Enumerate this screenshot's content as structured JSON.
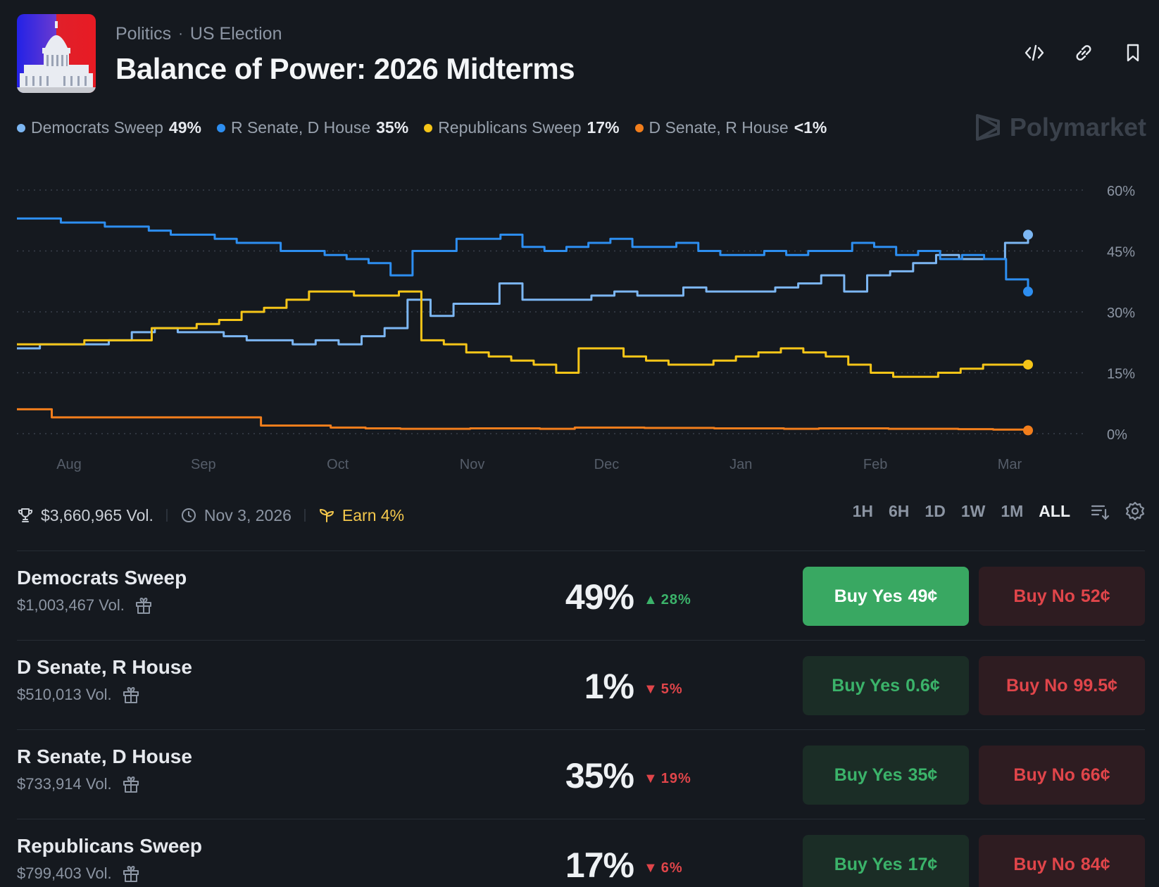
{
  "header": {
    "category": "Politics",
    "subcategory": "US Election",
    "title": "Balance of Power: 2026 Midterms",
    "actions": [
      "code-icon",
      "link-icon",
      "bookmark-icon"
    ]
  },
  "legend": [
    {
      "name": "Democrats Sweep",
      "value": "49%",
      "color": "#7cb6f2"
    },
    {
      "name": "R Senate, D House",
      "value": "35%",
      "color": "#2d8ef0"
    },
    {
      "name": "Republicans Sweep",
      "value": "17%",
      "color": "#f5c518"
    },
    {
      "name": "D Senate, R House",
      "value": "<1%",
      "color": "#f27e1c"
    }
  ],
  "brand": "Polymarket",
  "chart_data": {
    "type": "line",
    "x_tick_labels": [
      "Aug",
      "Sep",
      "Oct",
      "Nov",
      "Dec",
      "Jan",
      "Feb",
      "Mar"
    ],
    "y_tick_labels": [
      "60%",
      "45%",
      "30%",
      "15%",
      "0%"
    ],
    "ylim": [
      0,
      60
    ],
    "grid": true,
    "series": [
      {
        "name": "Democrats Sweep",
        "color": "#7cb6f2",
        "values": [
          21,
          22,
          22,
          22,
          23,
          25,
          26,
          25,
          25,
          24,
          23,
          23,
          22,
          23,
          22,
          24,
          26,
          33,
          29,
          32,
          32,
          37,
          33,
          33,
          33,
          34,
          35,
          34,
          34,
          36,
          35,
          35,
          35,
          36,
          37,
          39,
          35,
          39,
          40,
          42,
          44,
          43,
          43,
          47,
          49
        ]
      },
      {
        "name": "R Senate, D House",
        "color": "#2d8ef0",
        "values": [
          53,
          53,
          52,
          52,
          51,
          51,
          50,
          49,
          49,
          48,
          47,
          47,
          45,
          45,
          44,
          43,
          42,
          39,
          45,
          45,
          48,
          48,
          49,
          46,
          45,
          46,
          47,
          48,
          46,
          46,
          47,
          45,
          44,
          44,
          45,
          44,
          45,
          45,
          47,
          46,
          44,
          45,
          43,
          44,
          43,
          38,
          35
        ]
      },
      {
        "name": "Republicans Sweep",
        "color": "#f5c518",
        "values": [
          22,
          22,
          22,
          23,
          23,
          23,
          26,
          26,
          27,
          28,
          30,
          31,
          33,
          35,
          35,
          34,
          34,
          35,
          23,
          22,
          20,
          19,
          18,
          17,
          15,
          21,
          21,
          19,
          18,
          17,
          17,
          18,
          19,
          20,
          21,
          20,
          19,
          17,
          15,
          14,
          14,
          15,
          16,
          17,
          17,
          17
        ]
      },
      {
        "name": "D Senate, R House",
        "color": "#f27e1c",
        "values": [
          6,
          4,
          4,
          4,
          4,
          4,
          4,
          2,
          2,
          1.5,
          1.3,
          1.2,
          1.2,
          1.3,
          1.3,
          1.2,
          1.5,
          1.5,
          1.4,
          1.4,
          1.3,
          1.3,
          1.2,
          1.3,
          1.3,
          1.2,
          1.2,
          1.1,
          1,
          0.8
        ]
      }
    ]
  },
  "stats": {
    "volume": "$3,660,965 Vol.",
    "end_date": "Nov 3, 2026",
    "earn": "Earn 4%"
  },
  "ranges": [
    {
      "label": "1H",
      "active": false
    },
    {
      "label": "6H",
      "active": false
    },
    {
      "label": "1D",
      "active": false
    },
    {
      "label": "1W",
      "active": false
    },
    {
      "label": "1M",
      "active": false
    },
    {
      "label": "ALL",
      "active": true
    }
  ],
  "outcomes": [
    {
      "name": "Democrats Sweep",
      "volume": "$1,003,467 Vol.",
      "percent": "49%",
      "change": "28%",
      "direction": "up",
      "yes_label": "Buy Yes",
      "yes_price": "49¢",
      "no_label": "Buy No",
      "no_price": "52¢",
      "yes_solid": true
    },
    {
      "name": "D Senate, R House",
      "volume": "$510,013 Vol.",
      "percent": "1%",
      "change": "5%",
      "direction": "down",
      "yes_label": "Buy Yes",
      "yes_price": "0.6¢",
      "no_label": "Buy No",
      "no_price": "99.5¢",
      "yes_solid": false
    },
    {
      "name": "R Senate, D House",
      "volume": "$733,914 Vol.",
      "percent": "35%",
      "change": "19%",
      "direction": "down",
      "yes_label": "Buy Yes",
      "yes_price": "35¢",
      "no_label": "Buy No",
      "no_price": "66¢",
      "yes_solid": false
    },
    {
      "name": "Republicans Sweep",
      "volume": "$799,403 Vol.",
      "percent": "17%",
      "change": "6%",
      "direction": "down",
      "yes_label": "Buy Yes",
      "yes_price": "17¢",
      "no_label": "Buy No",
      "no_price": "84¢",
      "yes_solid": false
    }
  ]
}
